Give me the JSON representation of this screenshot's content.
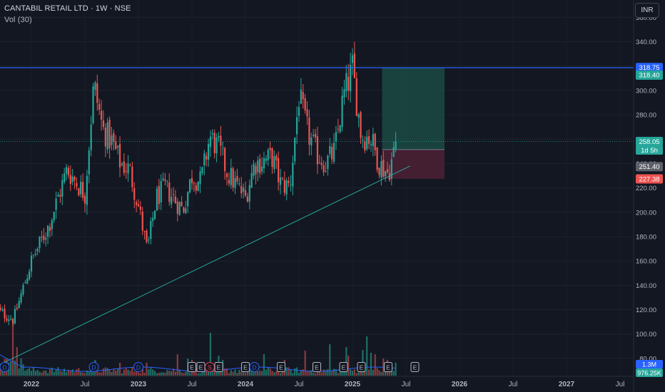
{
  "header": {
    "symbol_line": "CANTABIL RETAIL LTD · 1W · NSE",
    "indicator_line": "Vol (30)"
  },
  "currency_button": "INR",
  "colors": {
    "background": "#131722",
    "up": "#26a69a",
    "down": "#ef5350",
    "resistance_line": "#2962ff",
    "trend_line": "#26a69a",
    "volume_ma": "#2962ff",
    "profit_zone": "#1b4a44",
    "loss_zone": "#4a1f33"
  },
  "chart_data": {
    "type": "candlestick",
    "timeframe": "1W",
    "y_axis": {
      "ticks": [
        "360.00",
        "340.00",
        "320.00",
        "300.00",
        "280.00",
        "260.00",
        "240.00",
        "220.00",
        "200.00",
        "180.00",
        "160.00",
        "140.00",
        "120.00",
        "100.00",
        "80.00"
      ],
      "range": [
        70,
        366
      ]
    },
    "x_axis": {
      "ticks": [
        "2022",
        "Jul",
        "2023",
        "Jul",
        "2024",
        "Jul",
        "2025",
        "Jul",
        "2026",
        "Jul",
        "2027",
        "Jul"
      ]
    },
    "price_labels": [
      {
        "text": "318.75",
        "value": 318.75,
        "bg": "#2962ff"
      },
      {
        "text": "318.40",
        "value": 318.4,
        "bg": "#26a69a",
        "offset": 10
      },
      {
        "text": "258.05",
        "value": 258.05,
        "bg": "#26a69a"
      },
      {
        "text": "1d 5h",
        "value": 258.05,
        "bg": "#26a69a",
        "offset": 12
      },
      {
        "text": "251.40",
        "value": 251.4,
        "bg": "#5d606b",
        "offset": 24
      },
      {
        "text": "227.38",
        "value": 227.38,
        "bg": "#ef5350"
      }
    ],
    "volume_labels": [
      {
        "text": "1.3M",
        "bg": "#2962ff"
      },
      {
        "text": "976.25K",
        "bg": "#26a69a"
      }
    ],
    "resistance_line": {
      "from": "2021-07",
      "to": "2027-12",
      "value": 318.6
    },
    "trend_line": {
      "from": [
        "2021-09",
        75
      ],
      "to": [
        "2025-07",
        238
      ]
    },
    "position_tool": {
      "entry": 251.4,
      "target": 318.4,
      "stop": 227.38,
      "from": "2025-04",
      "to": "2025-11"
    },
    "events": [
      {
        "label": "D",
        "at": "2021-10"
      },
      {
        "label": "D",
        "at": "2022-08"
      },
      {
        "label": "D",
        "at": "2023-01"
      },
      {
        "label": "E",
        "at": "2023-07"
      },
      {
        "label": "E",
        "at": "2023-08"
      },
      {
        "label": "S",
        "at": "2023-09"
      },
      {
        "label": "E",
        "at": "2023-10"
      },
      {
        "label": "E",
        "at": "2024-01"
      },
      {
        "label": "D",
        "at": "2024-02"
      },
      {
        "label": "E",
        "at": "2024-05"
      },
      {
        "label": "E",
        "at": "2024-09"
      },
      {
        "label": "E",
        "at": "2024-12"
      },
      {
        "label": "E",
        "at": "2025-02"
      },
      {
        "label": "E",
        "at": "2025-05"
      },
      {
        "label": "E",
        "at": "2025-08"
      }
    ],
    "anchors": [
      [
        "2021-09",
        120
      ],
      [
        "2021-11",
        112
      ],
      [
        "2022-01",
        160
      ],
      [
        "2022-03",
        190
      ],
      [
        "2022-05",
        235
      ],
      [
        "2022-06",
        225
      ],
      [
        "2022-07",
        215
      ],
      [
        "2022-08",
        305
      ],
      [
        "2022-09",
        268
      ],
      [
        "2022-10",
        258
      ],
      [
        "2022-11",
        240
      ],
      [
        "2022-12",
        235
      ],
      [
        "2023-01",
        205
      ],
      [
        "2023-02",
        168
      ],
      [
        "2023-03",
        212
      ],
      [
        "2023-04",
        220
      ],
      [
        "2023-06",
        202
      ],
      [
        "2023-07",
        230
      ],
      [
        "2023-08",
        225
      ],
      [
        "2023-09",
        262
      ],
      [
        "2023-10",
        252
      ],
      [
        "2023-11",
        232
      ],
      [
        "2023-12",
        222
      ],
      [
        "2024-01",
        212
      ],
      [
        "2024-02",
        240
      ],
      [
        "2024-03",
        242
      ],
      [
        "2024-04",
        245
      ],
      [
        "2024-05",
        222
      ],
      [
        "2024-06",
        222
      ],
      [
        "2024-07",
        295
      ],
      [
        "2024-08",
        265
      ],
      [
        "2024-09",
        248
      ],
      [
        "2024-10",
        240
      ],
      [
        "2024-11",
        250
      ],
      [
        "2024-12",
        295
      ],
      [
        "2025-01",
        318
      ],
      [
        "2025-02",
        262
      ],
      [
        "2025-03",
        262
      ],
      [
        "2025-04",
        240
      ],
      [
        "2025-05",
        232
      ],
      [
        "2025-06",
        258
      ]
    ]
  }
}
